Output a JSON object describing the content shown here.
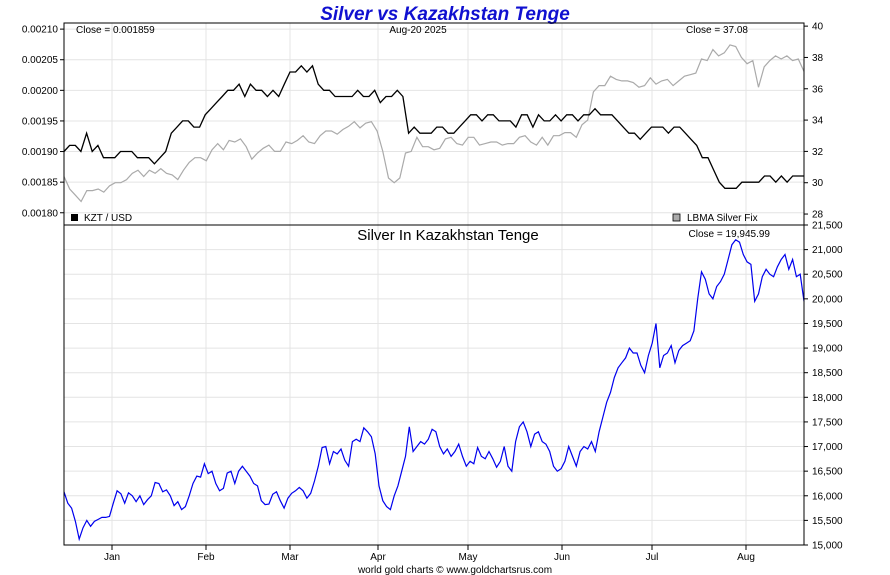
{
  "colors": {
    "title": "#1010d0",
    "kzt_line": "#000000",
    "silver_line": "#aaaaaa",
    "kzt_silver_line": "#0000ee",
    "grid": "#e4e4e4",
    "frame": "#000000"
  },
  "chart_data": [
    {
      "type": "line",
      "title": "Silver vs Kazakhstan Tenge",
      "date_label": "Aug-20  2025",
      "close_left": "Close = 0.001859",
      "close_right": "Close = 37.08",
      "x_ticks": [
        "Jan",
        "Feb",
        "Mar",
        "Apr",
        "May",
        "Jun",
        "Jul",
        "Aug"
      ],
      "grid": true,
      "legend_placement": "bottom",
      "y_left": {
        "ticks": [
          "0.00180",
          "0.00185",
          "0.00190",
          "0.00195",
          "0.00200",
          "0.00205",
          "0.00210"
        ],
        "range": [
          0.00178,
          0.00211
        ]
      },
      "y_right": {
        "ticks": [
          "28",
          "30",
          "32",
          "34",
          "36",
          "38",
          "40"
        ],
        "range": [
          27.3,
          40.2
        ]
      },
      "series": [
        {
          "name": "KZT / USD",
          "axis": "left",
          "values": [
            0.0019,
            0.00191,
            0.00191,
            0.0019,
            0.00193,
            0.0019,
            0.00191,
            0.00189,
            0.00189,
            0.00189,
            0.0019,
            0.0019,
            0.0019,
            0.00189,
            0.00189,
            0.00189,
            0.00188,
            0.00189,
            0.0019,
            0.00193,
            0.00194,
            0.00195,
            0.00195,
            0.00194,
            0.00194,
            0.00196,
            0.00197,
            0.00198,
            0.00199,
            0.002,
            0.002,
            0.00201,
            0.00199,
            0.00201,
            0.002,
            0.002,
            0.00199,
            0.002,
            0.00199,
            0.00201,
            0.00203,
            0.00203,
            0.00204,
            0.00203,
            0.00204,
            0.00201,
            0.002,
            0.002,
            0.00199,
            0.00199,
            0.00199,
            0.00199,
            0.002,
            0.00199,
            0.00199,
            0.002,
            0.00198,
            0.00199,
            0.00199,
            0.002,
            0.00199,
            0.00193,
            0.00194,
            0.00193,
            0.00193,
            0.00193,
            0.00194,
            0.00194,
            0.00193,
            0.00193,
            0.00194,
            0.00195,
            0.00196,
            0.00196,
            0.00195,
            0.00196,
            0.00196,
            0.00195,
            0.00195,
            0.00195,
            0.00194,
            0.00196,
            0.00196,
            0.00194,
            0.00196,
            0.00195,
            0.00195,
            0.00196,
            0.00195,
            0.00196,
            0.00196,
            0.00195,
            0.00196,
            0.00196,
            0.00197,
            0.00196,
            0.00196,
            0.00196,
            0.00195,
            0.00194,
            0.00193,
            0.00193,
            0.00192,
            0.00193,
            0.00194,
            0.00194,
            0.00194,
            0.00193,
            0.00194,
            0.00194,
            0.00193,
            0.00192,
            0.00191,
            0.00189,
            0.00189,
            0.00187,
            0.00185,
            0.00184,
            0.00184,
            0.00184,
            0.00185,
            0.00185,
            0.00185,
            0.00185,
            0.00186,
            0.00186,
            0.00185,
            0.00186,
            0.00185,
            0.00186,
            0.00186,
            0.00186
          ]
        },
        {
          "name": "LBMA Silver Fix",
          "axis": "right",
          "values": [
            30.4,
            29.6,
            29.2,
            28.8,
            29.5,
            29.5,
            29.6,
            29.4,
            29.8,
            30.0,
            30.0,
            30.2,
            30.6,
            30.8,
            30.4,
            30.8,
            30.6,
            30.9,
            30.6,
            30.5,
            30.2,
            30.8,
            31.3,
            31.6,
            31.6,
            31.4,
            32.1,
            32.5,
            32.1,
            32.7,
            32.6,
            32.8,
            32.3,
            31.5,
            31.9,
            32.2,
            32.4,
            32.0,
            32.0,
            32.6,
            32.5,
            32.7,
            33.0,
            32.6,
            32.5,
            33.0,
            33.3,
            33.3,
            33.1,
            33.4,
            33.6,
            33.9,
            33.5,
            33.8,
            33.9,
            33.3,
            32.0,
            30.3,
            30.0,
            30.3,
            31.9,
            32.0,
            32.9,
            32.3,
            32.3,
            32.1,
            32.2,
            32.8,
            32.9,
            32.5,
            32.4,
            32.9,
            32.9,
            32.4,
            32.5,
            32.6,
            32.6,
            32.4,
            32.5,
            32.5,
            32.9,
            33.0,
            32.6,
            32.4,
            32.9,
            32.4,
            33.0,
            33.0,
            33.2,
            33.2,
            32.9,
            33.7,
            34.0,
            35.8,
            36.2,
            36.2,
            36.8,
            36.6,
            36.5,
            36.5,
            36.4,
            36.1,
            36.2,
            36.7,
            36.3,
            36.5,
            36.6,
            36.2,
            36.5,
            36.8,
            36.9,
            37.0,
            37.9,
            37.8,
            38.5,
            38.1,
            38.3,
            38.8,
            38.7,
            38.0,
            37.6,
            37.8,
            36.1,
            37.4,
            37.8,
            38.1,
            37.9,
            38.1,
            37.8,
            37.9,
            37.1
          ]
        }
      ]
    },
    {
      "type": "line",
      "title": "Silver In Kazakhstan Tenge",
      "close_label": "Close = 19,945.99",
      "x_ticks": [
        "Jan",
        "Feb",
        "Mar",
        "Apr",
        "May",
        "Jun",
        "Jul",
        "Aug"
      ],
      "grid": true,
      "y_right": {
        "ticks": [
          "15,000",
          "15,500",
          "16,000",
          "16,500",
          "17,000",
          "17,500",
          "18,000",
          "18,500",
          "19,000",
          "19,500",
          "20,000",
          "20,500",
          "21,000",
          "21,500"
        ],
        "range": [
          15000,
          21500
        ]
      },
      "series": [
        {
          "axis": "right",
          "values": [
            16080,
            15850,
            15750,
            15480,
            15120,
            15350,
            15500,
            15380,
            15480,
            15520,
            15560,
            15560,
            15580,
            15850,
            16100,
            16040,
            15850,
            16060,
            16000,
            15880,
            16000,
            15820,
            15920,
            16000,
            16270,
            16250,
            16080,
            16120,
            16000,
            15800,
            15880,
            15720,
            15780,
            16000,
            16250,
            16400,
            16380,
            16650,
            16450,
            16500,
            16250,
            16100,
            16150,
            16460,
            16500,
            16250,
            16500,
            16600,
            16500,
            16400,
            16250,
            16200,
            15900,
            15820,
            15830,
            16030,
            16080,
            15900,
            15750,
            15950,
            16050,
            16100,
            16170,
            16100,
            15950,
            16050,
            16300,
            16600,
            16980,
            17000,
            16650,
            16900,
            16850,
            16950,
            16720,
            16600,
            17100,
            17150,
            17100,
            17380,
            17300,
            17200,
            16850,
            16200,
            15900,
            15780,
            15720,
            16000,
            16200,
            16500,
            16800,
            17400,
            16900,
            17000,
            17100,
            17050,
            17150,
            17350,
            17300,
            17000,
            16850,
            16950,
            16800,
            16900,
            17050,
            16800,
            16600,
            16700,
            16650,
            16980,
            16800,
            16750,
            16900,
            16750,
            16580,
            16700,
            17000,
            16600,
            16500,
            17100,
            17400,
            17500,
            17300,
            17000,
            17250,
            17300,
            17100,
            17050,
            16900,
            16600,
            16500,
            16550,
            16700,
            17000,
            16800,
            16600,
            16900,
            17000,
            16950,
            17100,
            16900,
            17300,
            17600,
            17900,
            18100,
            18400,
            18600,
            18700,
            18800,
            19000,
            18900,
            18900,
            18650,
            18500,
            18850,
            19100,
            19500,
            18600,
            18850,
            18900,
            19050,
            18700,
            18950,
            19050,
            19100,
            19150,
            19350,
            20000,
            20550,
            20400,
            20100,
            20000,
            20250,
            20350,
            20500,
            20800,
            21100,
            21200,
            21150,
            20900,
            20750,
            20700,
            19950,
            20100,
            20450,
            20600,
            20500,
            20450,
            20650,
            20800,
            20900,
            20600,
            20800,
            20450,
            20500,
            19950
          ]
        }
      ]
    }
  ],
  "footer": "world gold charts © www.goldchartsrus.com"
}
